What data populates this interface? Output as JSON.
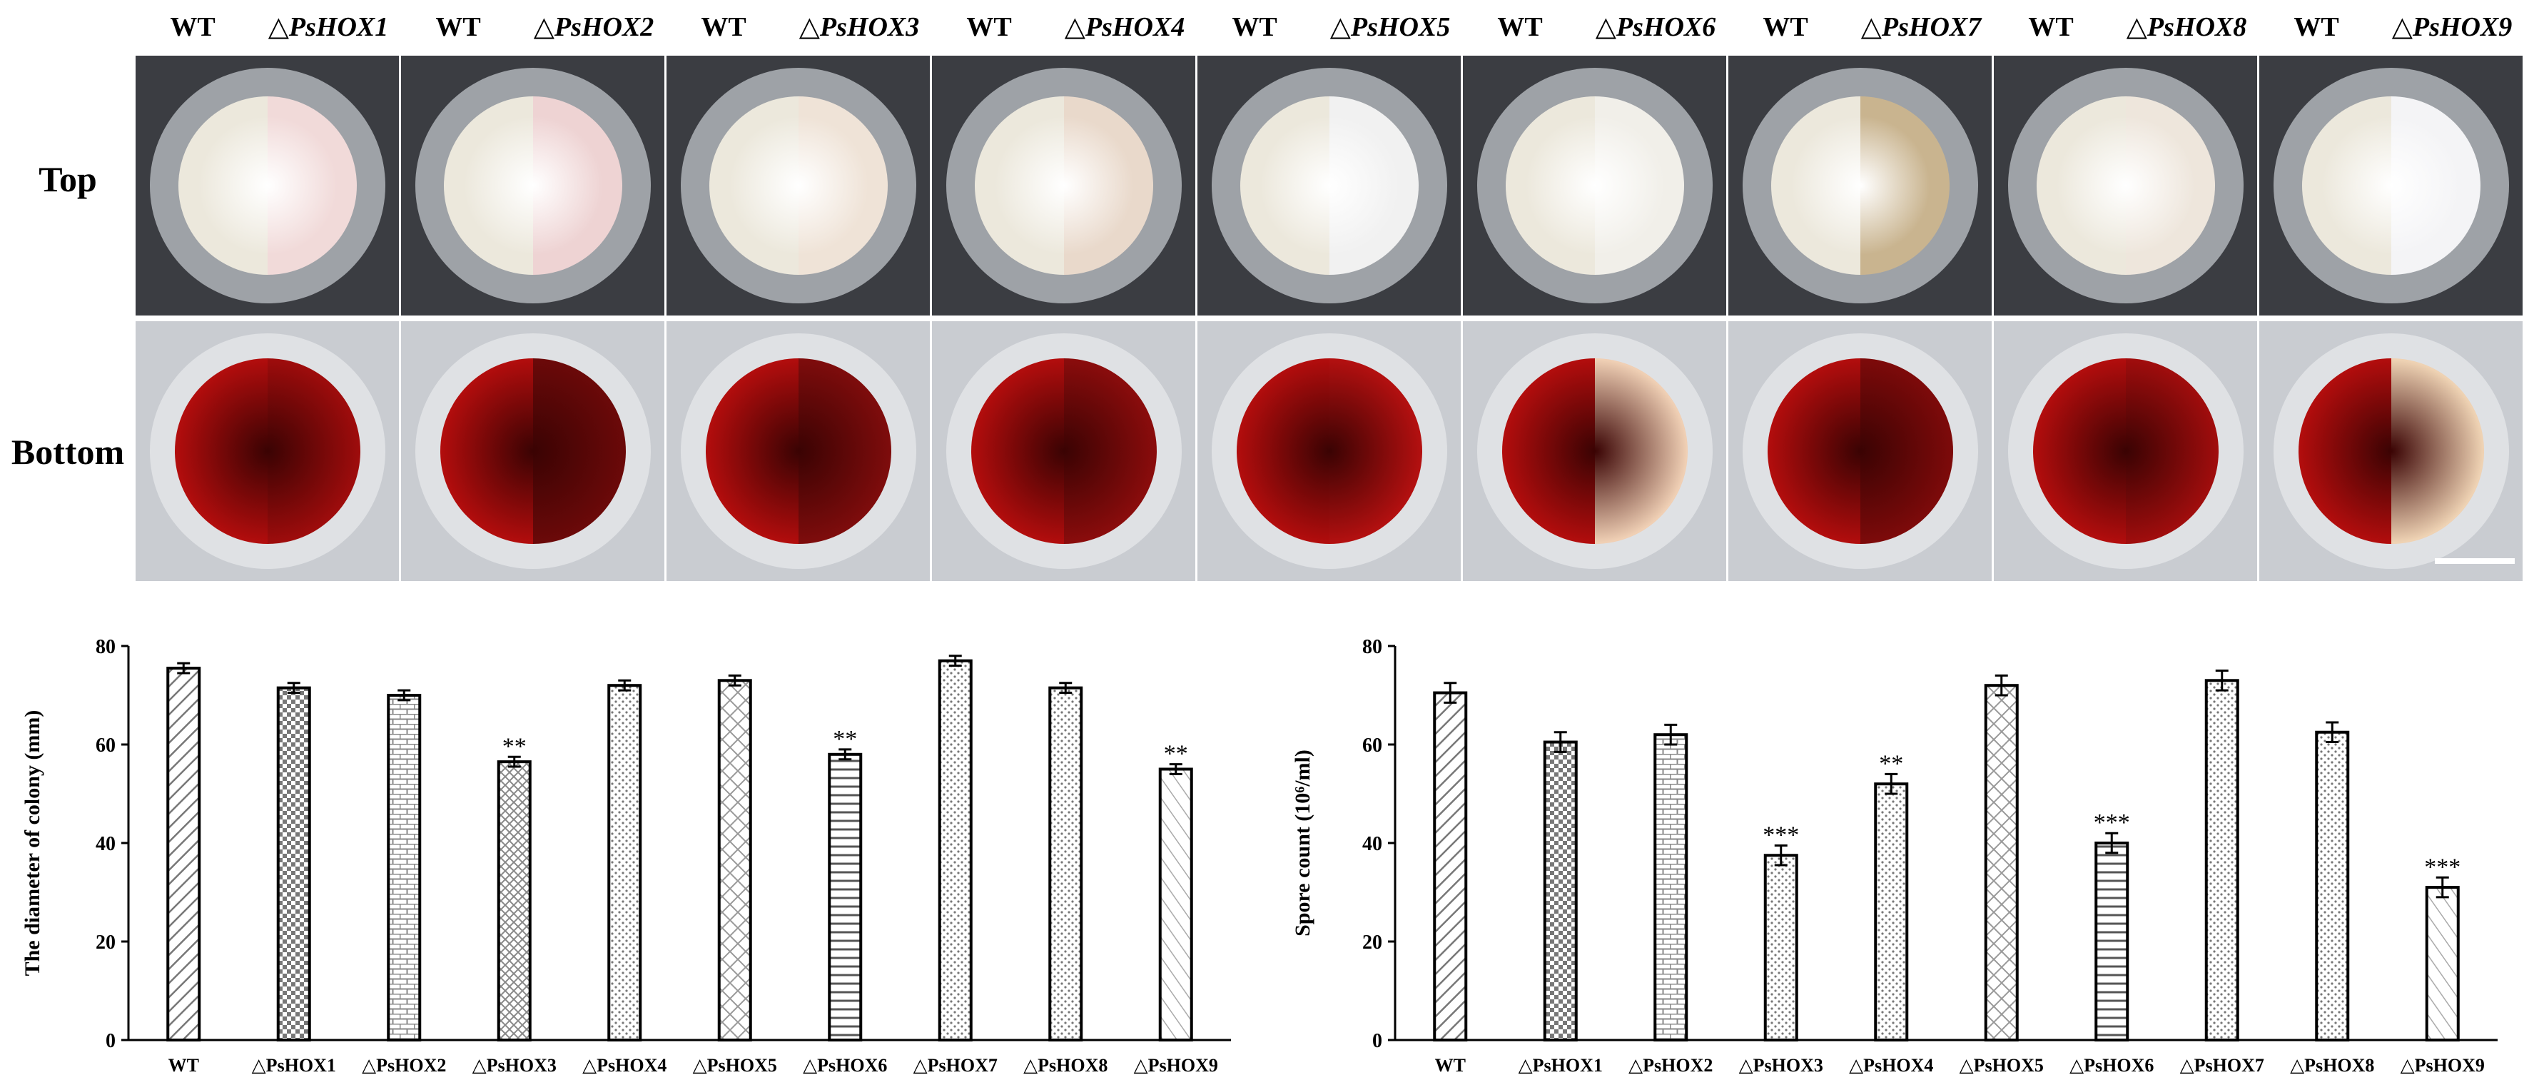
{
  "header": {
    "strains": [
      {
        "wt": "WT",
        "mutant": "△PsHOX1"
      },
      {
        "wt": "WT",
        "mutant": "△PsHOX2"
      },
      {
        "wt": "WT",
        "mutant": "△PsHOX3"
      },
      {
        "wt": "WT",
        "mutant": "△PsHOX4"
      },
      {
        "wt": "WT",
        "mutant": "△PsHOX5"
      },
      {
        "wt": "WT",
        "mutant": "△PsHOX6"
      },
      {
        "wt": "WT",
        "mutant": "△PsHOX7"
      },
      {
        "wt": "WT",
        "mutant": "△PsHOX8"
      },
      {
        "wt": "WT",
        "mutant": "△PsHOX9"
      }
    ]
  },
  "rows": {
    "top": "Top",
    "bottom": "Bottom"
  },
  "plate_colors": {
    "top_wt": "#ece8dc",
    "top_mutants": [
      "#f1dad9",
      "#eed3d3",
      "#efe3d7",
      "#e9d9cb",
      "#f1f1f1",
      "#f1efe9",
      "#c9b48f",
      "#eee6dc",
      "#f4f4f6"
    ],
    "bottom_wt": "#b20d0d",
    "bottom_mutants": [
      "#9e0c0c",
      "#6b0909",
      "#7e0c0c",
      "#8a0c0c",
      "#b31010",
      "#f0d0b5",
      "#7d0a0a",
      "#a00d0d",
      "#efd3b4"
    ],
    "dish_bg": "#3b3d42",
    "bottom_dish_bg": "#c9ccd1"
  },
  "chart_data": [
    {
      "type": "bar",
      "ylabel": "The diameter of colony (mm)",
      "categories": [
        "WT",
        "△PsHOX1",
        "△PsHOX2",
        "△PsHOX3",
        "△PsHOX4",
        "△PsHOX5",
        "△PsHOX6",
        "△PsHOX7",
        "△PsHOX8",
        "△PsHOX9"
      ],
      "values": [
        75.5,
        71.5,
        70,
        56.5,
        72,
        73,
        58,
        77,
        71.5,
        55
      ],
      "errors": [
        1,
        1,
        1,
        1,
        1,
        1,
        1,
        1,
        1,
        1
      ],
      "significance": [
        "",
        "",
        "",
        "**",
        "",
        "",
        "**",
        "",
        "",
        "**"
      ],
      "patterns": [
        "diag",
        "check",
        "brick",
        "diamond",
        "dots",
        "diagcross",
        "hstripe",
        "dots",
        "dots",
        "diag2"
      ],
      "ylim": [
        0,
        80
      ],
      "yticks": [
        0,
        20,
        40,
        60,
        80
      ]
    },
    {
      "type": "bar",
      "ylabel": "Spore count (10⁶/ml)",
      "categories": [
        "WT",
        "△PsHOX1",
        "△PsHOX2",
        "△PsHOX3",
        "△PsHOX4",
        "△PsHOX5",
        "△PsHOX6",
        "△PsHOX7",
        "△PsHOX8",
        "△PsHOX9"
      ],
      "values": [
        70.5,
        60.5,
        62,
        37.5,
        52,
        72,
        40,
        73,
        62.5,
        31
      ],
      "errors": [
        2,
        2,
        2,
        2,
        2,
        2,
        2,
        2,
        2,
        2
      ],
      "significance": [
        "",
        "",
        "",
        "***",
        "**",
        "",
        "***",
        "",
        "",
        "***"
      ],
      "patterns": [
        "diag",
        "check",
        "brick",
        "dots",
        "dots",
        "diagcross",
        "hstripe",
        "dots",
        "dots",
        "diag2"
      ],
      "ylim": [
        0,
        80
      ],
      "yticks": [
        0,
        20,
        40,
        60,
        80
      ]
    }
  ]
}
